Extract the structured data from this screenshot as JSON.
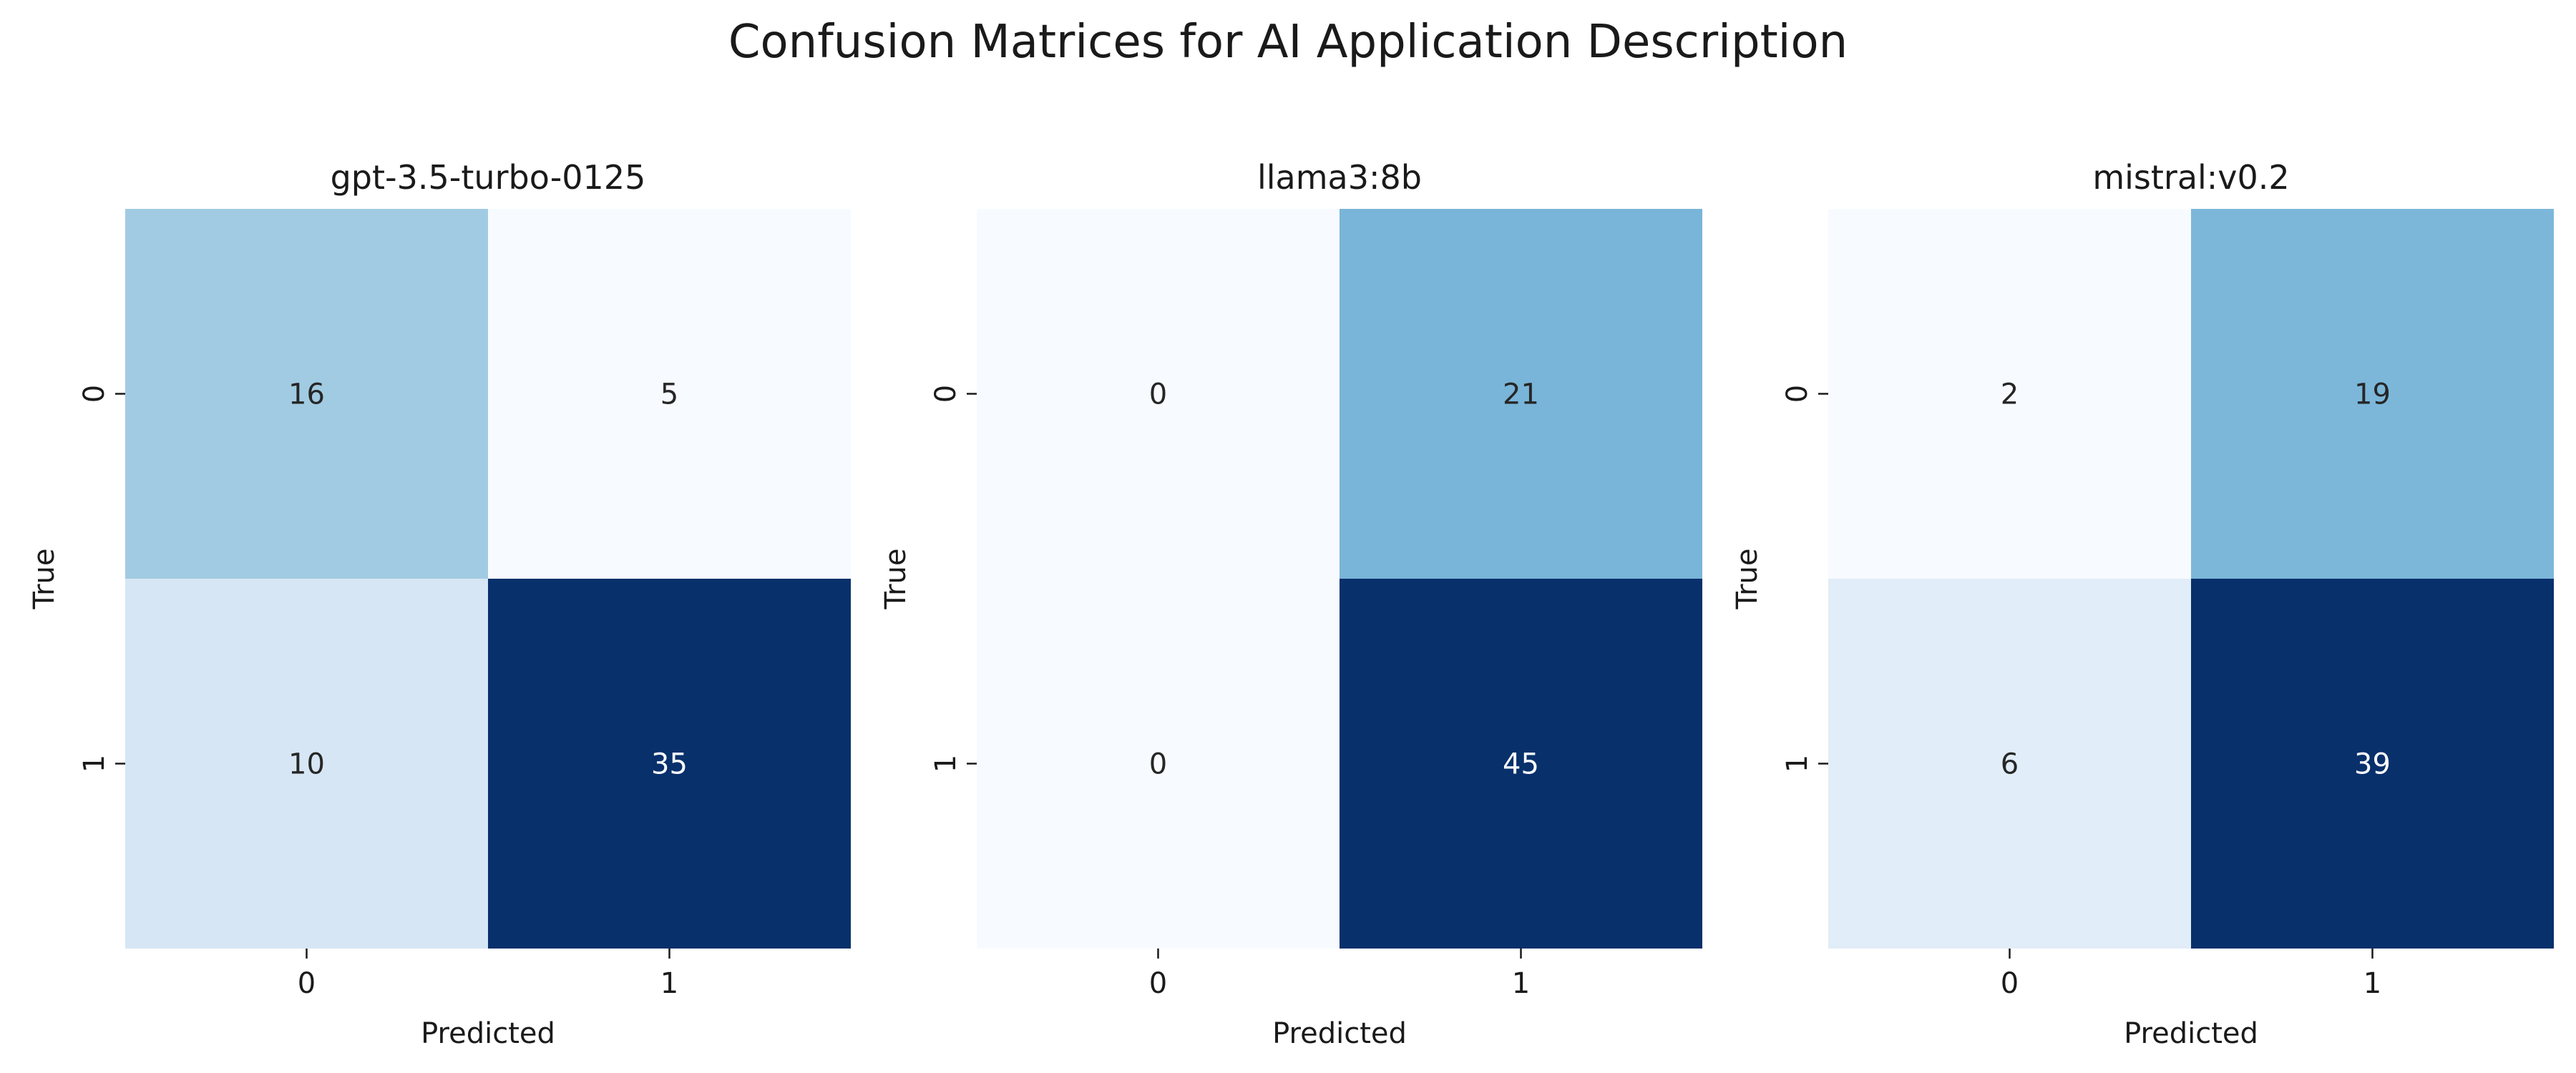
{
  "figure_title": "Confusion Matrices for AI Application Description",
  "chart_data": [
    {
      "type": "heatmap",
      "title": "gpt-3.5-turbo-0125",
      "xlabel": "Predicted",
      "ylabel": "True",
      "x_categories": [
        "0",
        "1"
      ],
      "y_categories": [
        "0",
        "1"
      ],
      "matrix": [
        [
          16,
          5
        ],
        [
          10,
          35
        ]
      ],
      "colormap": "Blues",
      "colorbar": false,
      "grid": false
    },
    {
      "type": "heatmap",
      "title": "llama3:8b",
      "xlabel": "Predicted",
      "ylabel": "True",
      "x_categories": [
        "0",
        "1"
      ],
      "y_categories": [
        "0",
        "1"
      ],
      "matrix": [
        [
          0,
          21
        ],
        [
          0,
          45
        ]
      ],
      "colormap": "Blues",
      "colorbar": false,
      "grid": false
    },
    {
      "type": "heatmap",
      "title": "mistral:v0.2",
      "xlabel": "Predicted",
      "ylabel": "True",
      "x_categories": [
        "0",
        "1"
      ],
      "y_categories": [
        "0",
        "1"
      ],
      "matrix": [
        [
          2,
          19
        ],
        [
          6,
          39
        ]
      ],
      "colormap": "Blues",
      "colorbar": false,
      "grid": false
    }
  ]
}
